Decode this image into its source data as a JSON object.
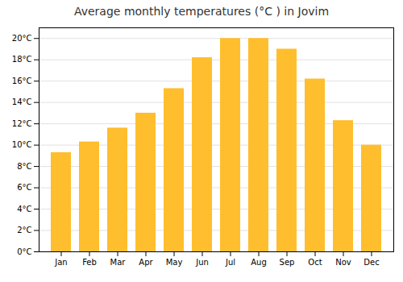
{
  "chart_data": {
    "type": "bar",
    "title": "Average monthly temperatures (°C ) in Jovim",
    "categories": [
      "Jan",
      "Feb",
      "Mar",
      "Apr",
      "May",
      "Jun",
      "Jul",
      "Aug",
      "Sep",
      "Oct",
      "Nov",
      "Dec"
    ],
    "values": [
      9.3,
      10.3,
      11.6,
      13.0,
      15.3,
      18.2,
      20.0,
      20.0,
      19.0,
      16.2,
      12.3,
      10.0
    ],
    "color": "#FFBE2D",
    "ylim": [
      0,
      21
    ],
    "yticks": [
      {
        "value": 0,
        "label": "0°C"
      },
      {
        "value": 2,
        "label": "2°C"
      },
      {
        "value": 4,
        "label": "4°C"
      },
      {
        "value": 6,
        "label": "6°C"
      },
      {
        "value": 8,
        "label": "8°C"
      },
      {
        "value": 10,
        "label": "10°C"
      },
      {
        "value": 12,
        "label": "12°C"
      },
      {
        "value": 14,
        "label": "14°C"
      },
      {
        "value": 16,
        "label": "16°C"
      },
      {
        "value": 18,
        "label": "18°C"
      },
      {
        "value": 20,
        "label": "20°C"
      }
    ],
    "grid": true
  }
}
